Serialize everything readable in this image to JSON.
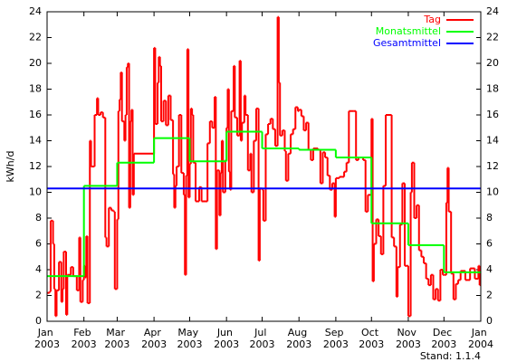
{
  "chart_data": {
    "type": "step",
    "y_label": "kWh/d",
    "footnote": "Stand: 1.1.4",
    "xlim": [
      0,
      365
    ],
    "xticks": [
      {
        "value": 0,
        "label": "Jan 2003"
      },
      {
        "value": 31,
        "label": "Feb 2003"
      },
      {
        "value": 59,
        "label": "Mar 2003"
      },
      {
        "value": 90,
        "label": "Apr 2003"
      },
      {
        "value": 120,
        "label": "May 2003"
      },
      {
        "value": 151,
        "label": "Jun 2003"
      },
      {
        "value": 181,
        "label": "Jul 2003"
      },
      {
        "value": 212,
        "label": "Aug 2003"
      },
      {
        "value": 243,
        "label": "Sep 2003"
      },
      {
        "value": 273,
        "label": "Oct 2003"
      },
      {
        "value": 304,
        "label": "Nov 2003"
      },
      {
        "value": 334,
        "label": "Dec 2003"
      },
      {
        "value": 365,
        "label": "Jan 2004"
      }
    ],
    "ylim": [
      0,
      24
    ],
    "yticks": [
      0,
      2,
      4,
      6,
      8,
      10,
      12,
      14,
      16,
      18,
      20,
      22,
      24
    ],
    "legend": "upper right",
    "series": [
      {
        "name": "Tag",
        "color": "#ff0000",
        "x": [
          0,
          2,
          3,
          5,
          6,
          7,
          8,
          10,
          12,
          13,
          14,
          16,
          17,
          20,
          22,
          25,
          27,
          28,
          30,
          31,
          32,
          33,
          34,
          36,
          37,
          40,
          42,
          43,
          45,
          47,
          49,
          50,
          52,
          54,
          56,
          57,
          59,
          60,
          61,
          62,
          63,
          65,
          66,
          67,
          68,
          69,
          70,
          71,
          72,
          73,
          90,
          91,
          93,
          94,
          95,
          96,
          98,
          100,
          102,
          104,
          106,
          107,
          108,
          109,
          111,
          113,
          115,
          116,
          117,
          118,
          119,
          120,
          121,
          122,
          123,
          125,
          128,
          130,
          135,
          137,
          139,
          141,
          142,
          143,
          145,
          146,
          147,
          148,
          150,
          151,
          152,
          153,
          154,
          155,
          157,
          158,
          160,
          162,
          163,
          164,
          166,
          167,
          169,
          171,
          172,
          174,
          176,
          178,
          179,
          181,
          182,
          184,
          186,
          188,
          190,
          192,
          194,
          195,
          196,
          198,
          200,
          201,
          203,
          205,
          207,
          209,
          211,
          212,
          214,
          216,
          218,
          220,
          222,
          224,
          228,
          230,
          232,
          234,
          236,
          238,
          240,
          242,
          243,
          246,
          250,
          252,
          254,
          258,
          260,
          262,
          264,
          266,
          268,
          270,
          273,
          274,
          275,
          277,
          279,
          281,
          283,
          285,
          290,
          292,
          294,
          295,
          297,
          299,
          301,
          304,
          306,
          307,
          309,
          311,
          313,
          315,
          317,
          319,
          321,
          323,
          325,
          327,
          329,
          331,
          333,
          334,
          336,
          337,
          338,
          340,
          342,
          344,
          346,
          348,
          352,
          356,
          360,
          363,
          364
        ],
        "values": [
          2.2,
          2.3,
          7.8,
          6.0,
          2.5,
          0.4,
          2.4,
          4.6,
          1.5,
          2.5,
          5.4,
          0.5,
          3.6,
          4.2,
          3.5,
          2.4,
          6.5,
          1.5,
          3.2,
          4.3,
          3.4,
          6.6,
          1.4,
          14.0,
          12.0,
          16.0,
          17.3,
          16.0,
          16.2,
          15.8,
          6.5,
          5.8,
          8.8,
          8.6,
          8.5,
          2.5,
          7.9,
          16.3,
          17.2,
          19.3,
          15.5,
          14.0,
          16.0,
          19.7,
          20.0,
          8.8,
          15.5,
          16.4,
          9.8,
          13.0,
          21.2,
          15.3,
          18.5,
          20.5,
          19.8,
          15.5,
          17.1,
          15.2,
          17.5,
          15.6,
          11.4,
          8.8,
          10.5,
          12.0,
          16.0,
          11.5,
          9.8,
          3.6,
          11.3,
          21.1,
          9.6,
          12.2,
          16.5,
          16.0,
          12.3,
          9.3,
          10.4,
          9.3,
          13.8,
          15.5,
          15.0,
          17.4,
          5.6,
          11.7,
          8.2,
          11.5,
          14.0,
          10.0,
          12.5,
          15.0,
          18.0,
          11.6,
          10.2,
          16.3,
          19.8,
          15.8,
          14.4,
          20.2,
          14.0,
          15.4,
          17.5,
          16.0,
          11.7,
          13.0,
          10.0,
          14.0,
          16.5,
          4.7,
          10.3,
          10.2,
          7.8,
          14.5,
          15.3,
          15.7,
          14.9,
          13.6,
          23.6,
          18.5,
          14.4,
          14.8,
          13.2,
          10.9,
          13.0,
          14.5,
          14.9,
          16.6,
          16.3,
          16.4,
          15.9,
          14.8,
          15.4,
          13.3,
          12.5,
          13.4,
          13.3,
          10.7,
          13.1,
          12.7,
          11.3,
          10.2,
          10.7,
          8.1,
          11.1,
          11.2,
          11.6,
          12.3,
          16.3,
          16.3,
          12.5,
          12.7,
          12.7,
          12.5,
          8.5,
          9.8,
          15.7,
          3.1,
          6.0,
          7.9,
          6.6,
          5.2,
          10.5,
          16.0,
          6.5,
          5.8,
          1.9,
          4.2,
          7.5,
          10.7,
          4.3,
          0.4,
          10.0,
          12.3,
          8.0,
          9.0,
          5.5,
          5.0,
          4.5,
          3.3,
          2.8,
          3.6,
          1.7,
          2.5,
          1.6,
          4.0,
          3.6,
          3.6,
          9.2,
          11.9,
          8.5,
          3.7,
          1.7,
          2.9,
          3.2,
          3.9,
          3.2,
          4.1,
          3.3,
          4.3,
          2.8
        ]
      },
      {
        "name": "Monatsmittel",
        "color": "#00ff00",
        "x": [
          0,
          31,
          59,
          90,
          120,
          151,
          181,
          212,
          243,
          273,
          304,
          334
        ],
        "values": [
          3.5,
          10.5,
          12.3,
          14.2,
          12.4,
          14.7,
          13.4,
          13.3,
          12.7,
          7.6,
          5.9,
          3.8
        ]
      },
      {
        "name": "Gesamtmittel",
        "color": "#0000ff",
        "x": [
          0
        ],
        "values": [
          10.3
        ]
      }
    ]
  }
}
